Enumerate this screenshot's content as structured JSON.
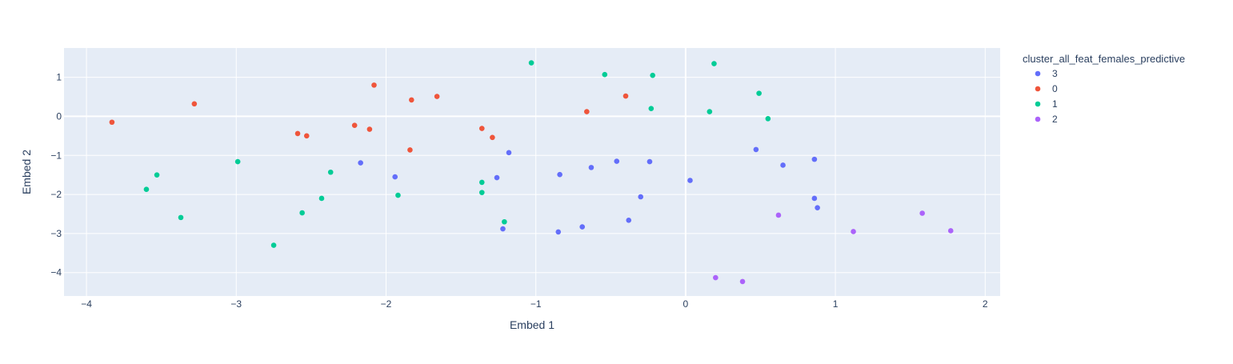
{
  "chart_data": {
    "type": "scatter",
    "title": "",
    "xlabel": "Embed 1",
    "ylabel": "Embed 2",
    "xlim": [
      -4.15,
      2.1
    ],
    "ylim": [
      -4.6,
      1.75
    ],
    "x_ticks": [
      -4,
      -3,
      -2,
      -1,
      0,
      1,
      2
    ],
    "x_tick_labels": [
      "−4",
      "−3",
      "−2",
      "−1",
      "0",
      "1",
      "2"
    ],
    "y_ticks": [
      1,
      0,
      -1,
      -2,
      -3,
      -4
    ],
    "y_tick_labels": [
      "1",
      "0",
      "−1",
      "−2",
      "−3",
      "−4"
    ],
    "grid": true,
    "legend_title": "cluster_all_feat_females_predictive",
    "legend_position": "right",
    "series": [
      {
        "name": "3",
        "color": "#636efa",
        "points": [
          [
            -2.17,
            -1.19
          ],
          [
            -1.94,
            -1.55
          ],
          [
            -1.26,
            -1.57
          ],
          [
            -1.18,
            -0.93
          ],
          [
            -1.22,
            -2.88
          ],
          [
            -0.84,
            -1.49
          ],
          [
            -0.85,
            -2.96
          ],
          [
            -0.63,
            -1.31
          ],
          [
            -0.69,
            -2.83
          ],
          [
            -0.46,
            -1.15
          ],
          [
            -0.3,
            -2.06
          ],
          [
            -0.38,
            -2.66
          ],
          [
            -0.24,
            -1.16
          ],
          [
            0.03,
            -1.64
          ],
          [
            0.47,
            -0.85
          ],
          [
            0.65,
            -1.25
          ],
          [
            0.86,
            -1.1
          ],
          [
            0.86,
            -2.1
          ],
          [
            0.88,
            -2.34
          ]
        ]
      },
      {
        "name": "0",
        "color": "#ef553b",
        "points": [
          [
            -3.83,
            -0.15
          ],
          [
            -3.28,
            0.32
          ],
          [
            -2.59,
            -0.44
          ],
          [
            -2.53,
            -0.5
          ],
          [
            -2.21,
            -0.23
          ],
          [
            -2.11,
            -0.33
          ],
          [
            -2.08,
            0.8
          ],
          [
            -1.83,
            0.42
          ],
          [
            -1.84,
            -0.86
          ],
          [
            -1.66,
            0.51
          ],
          [
            -1.36,
            -0.31
          ],
          [
            -1.29,
            -0.54
          ],
          [
            -0.66,
            0.12
          ],
          [
            -0.4,
            0.52
          ]
        ]
      },
      {
        "name": "1",
        "color": "#00cc96",
        "points": [
          [
            -3.6,
            -1.87
          ],
          [
            -3.53,
            -1.5
          ],
          [
            -3.37,
            -2.59
          ],
          [
            -2.99,
            -1.16
          ],
          [
            -2.75,
            -3.3
          ],
          [
            -2.56,
            -2.47
          ],
          [
            -2.43,
            -2.1
          ],
          [
            -2.37,
            -1.43
          ],
          [
            -1.92,
            -2.02
          ],
          [
            -1.36,
            -1.69
          ],
          [
            -1.36,
            -1.95
          ],
          [
            -1.21,
            -2.7
          ],
          [
            -1.03,
            1.37
          ],
          [
            -0.54,
            1.07
          ],
          [
            -0.22,
            1.05
          ],
          [
            -0.23,
            0.2
          ],
          [
            0.16,
            0.12
          ],
          [
            0.19,
            1.35
          ],
          [
            0.49,
            0.59
          ],
          [
            0.55,
            -0.06
          ]
        ]
      },
      {
        "name": "2",
        "color": "#ab63fa",
        "points": [
          [
            0.2,
            -4.13
          ],
          [
            0.38,
            -4.23
          ],
          [
            0.62,
            -2.53
          ],
          [
            1.12,
            -2.95
          ],
          [
            1.58,
            -2.48
          ],
          [
            1.77,
            -2.93
          ]
        ]
      }
    ]
  }
}
